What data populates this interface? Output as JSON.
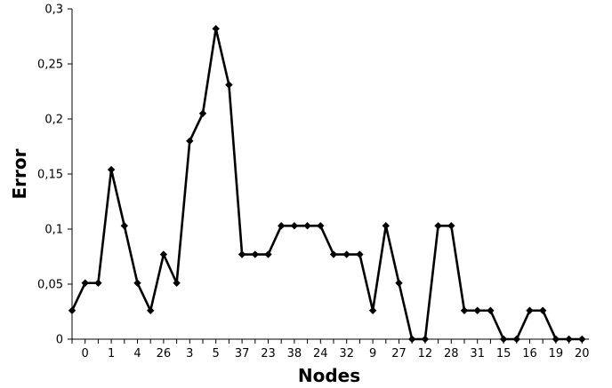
{
  "chart_data": {
    "type": "line",
    "title": "",
    "xlabel": "Nodes",
    "ylabel": "Error",
    "ylim": [
      0,
      0.3
    ],
    "y_ticks": [
      "0",
      "0,05",
      "0,1",
      "0,15",
      "0,2",
      "0,25",
      "0,3"
    ],
    "y_tick_values": [
      0,
      0.05,
      0.1,
      0.15,
      0.2,
      0.25,
      0.3
    ],
    "x_tick_labels": [
      "0",
      "1",
      "4",
      "26",
      "3",
      "5",
      "37",
      "23",
      "38",
      "24",
      "32",
      "9",
      "27",
      "12",
      "28",
      "31",
      "15",
      "16",
      "19",
      "20"
    ],
    "grid": false,
    "legend": "none",
    "series": [
      {
        "color": "#000000",
        "marker": "diamond",
        "values": [
          0.026,
          0.051,
          0.051,
          0.154,
          0.103,
          0.051,
          0.026,
          0.077,
          0.051,
          0.18,
          0.205,
          0.282,
          0.231,
          0.077,
          0.077,
          0.077,
          0.103,
          0.103,
          0.103,
          0.103,
          0.077,
          0.077,
          0.077,
          0.026,
          0.103,
          0.051,
          0.0,
          0.0,
          0.103,
          0.103,
          0.026,
          0.026,
          0.026,
          0.0,
          0.0,
          0.026,
          0.026,
          0.0,
          0.0,
          0.0
        ]
      }
    ]
  }
}
